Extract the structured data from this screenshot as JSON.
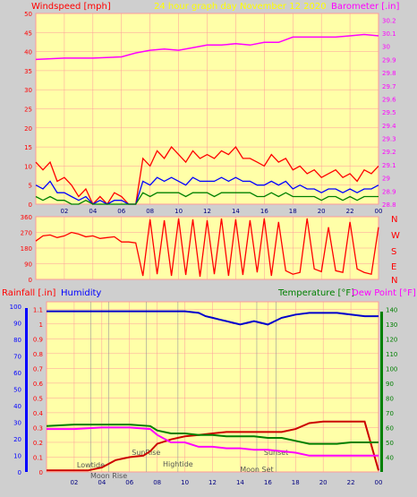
{
  "header": {
    "windspeed_label": "Windspeed [mph]",
    "title": "24 hour graph day   November 12 2020",
    "barometer_label": "Barometer [.in]"
  },
  "labels": {
    "rainfall": "Rainfall [.in]",
    "humidity": "Humidity",
    "temperature": "Temperature [°F]",
    "dewpoint": "Dew Point [°F]"
  },
  "colors": {
    "background": "#cfcfcf",
    "plot_bg": "#ffffa8",
    "gust": "#ff0000",
    "avg": "#0000ff",
    "lull": "#008000",
    "barometer": "#ff00ff",
    "direction": "#ff0000",
    "rain": "#cc0000",
    "humidity": "#0000cc",
    "temperature": "#008000",
    "dewpoint": "#ff00ff",
    "grid": "#ff9a9a"
  },
  "chart_data": [
    {
      "type": "line",
      "name": "wind-barometer",
      "x_ticks": [
        "02",
        "04",
        "06",
        "08",
        "10",
        "12",
        "14",
        "16",
        "18",
        "20",
        "22",
        "00"
      ],
      "xlim": [
        0,
        24
      ],
      "y_left_ticks": [
        "0",
        "5",
        "10",
        "15",
        "20",
        "25",
        "30",
        "35",
        "40",
        "45",
        "50"
      ],
      "ylim_left": [
        0,
        50
      ],
      "y_right_ticks": [
        "28.8",
        "28.9",
        "29",
        "29.1",
        "29.2",
        "29.3",
        "29.4",
        "29.5",
        "29.6",
        "29.7",
        "29.8",
        "29.9",
        "30",
        "30.1",
        "30.2"
      ],
      "ylim_right": [
        28.8,
        30.25
      ],
      "series": [
        {
          "name": "Windspeed gust",
          "axis": "left",
          "x": [
            0,
            0.5,
            1,
            1.5,
            2,
            2.5,
            3,
            3.5,
            4,
            4.5,
            5,
            5.5,
            6,
            6.5,
            7,
            7.5,
            8,
            8.5,
            9,
            9.5,
            10,
            10.5,
            11,
            11.5,
            12,
            12.5,
            13,
            13.5,
            14,
            14.5,
            15,
            15.5,
            16,
            16.5,
            17,
            17.5,
            18,
            18.5,
            19,
            19.5,
            20,
            20.5,
            21,
            21.5,
            22,
            22.5,
            23,
            23.5,
            24
          ],
          "values": [
            11,
            9,
            11,
            6,
            7,
            5,
            2,
            4,
            0,
            2,
            0,
            3,
            2,
            0,
            0,
            12,
            10,
            14,
            12,
            15,
            13,
            11,
            14,
            12,
            13,
            12,
            14,
            13,
            15,
            12,
            12,
            11,
            10,
            13,
            11,
            12,
            9,
            10,
            8,
            9,
            7,
            8,
            9,
            7,
            8,
            6,
            9,
            8,
            10
          ]
        },
        {
          "name": "Windspeed average",
          "axis": "left",
          "x": [
            0,
            0.5,
            1,
            1.5,
            2,
            2.5,
            3,
            3.5,
            4,
            4.5,
            5,
            5.5,
            6,
            6.5,
            7,
            7.5,
            8,
            8.5,
            9,
            9.5,
            10,
            10.5,
            11,
            11.5,
            12,
            12.5,
            13,
            13.5,
            14,
            14.5,
            15,
            15.5,
            16,
            16.5,
            17,
            17.5,
            18,
            18.5,
            19,
            19.5,
            20,
            20.5,
            21,
            21.5,
            22,
            22.5,
            23,
            23.5,
            24
          ],
          "values": [
            5,
            4,
            6,
            3,
            3,
            2,
            1,
            2,
            0,
            1,
            0,
            1,
            1,
            0,
            0,
            6,
            5,
            7,
            6,
            7,
            6,
            5,
            7,
            6,
            6,
            6,
            7,
            6,
            7,
            6,
            6,
            5,
            5,
            6,
            5,
            6,
            4,
            5,
            4,
            4,
            3,
            4,
            4,
            3,
            4,
            3,
            4,
            4,
            5
          ]
        },
        {
          "name": "Windspeed lull",
          "axis": "left",
          "x": [
            0,
            0.5,
            1,
            1.5,
            2,
            2.5,
            3,
            3.5,
            4,
            4.5,
            5,
            5.5,
            6,
            6.5,
            7,
            7.5,
            8,
            8.5,
            9,
            9.5,
            10,
            10.5,
            11,
            11.5,
            12,
            12.5,
            13,
            13.5,
            14,
            14.5,
            15,
            15.5,
            16,
            16.5,
            17,
            17.5,
            18,
            18.5,
            19,
            19.5,
            20,
            20.5,
            21,
            21.5,
            22,
            22.5,
            23,
            23.5,
            24
          ],
          "values": [
            2,
            1,
            2,
            1,
            1,
            0,
            0,
            1,
            0,
            0,
            0,
            0,
            0,
            0,
            0,
            3,
            2,
            3,
            3,
            3,
            3,
            2,
            3,
            3,
            3,
            2,
            3,
            3,
            3,
            3,
            3,
            2,
            2,
            3,
            2,
            3,
            2,
            2,
            2,
            2,
            1,
            2,
            2,
            1,
            2,
            1,
            2,
            2,
            2
          ]
        },
        {
          "name": "Barometer",
          "axis": "right",
          "x": [
            0,
            2,
            4,
            6,
            7,
            8,
            9,
            10,
            11,
            12,
            13,
            14,
            15,
            16,
            17,
            18,
            19,
            20,
            21,
            22,
            23,
            24
          ],
          "values": [
            29.9,
            29.91,
            29.91,
            29.92,
            29.95,
            29.97,
            29.98,
            29.97,
            29.99,
            30.01,
            30.01,
            30.02,
            30.01,
            30.03,
            30.03,
            30.07,
            30.07,
            30.07,
            30.07,
            30.08,
            30.09,
            30.08
          ]
        }
      ]
    },
    {
      "type": "line",
      "name": "wind-direction",
      "x_ticks": [
        "02",
        "04",
        "06",
        "08",
        "10",
        "12",
        "14",
        "16",
        "18",
        "20",
        "22",
        "00"
      ],
      "xlim": [
        0,
        24
      ],
      "y_left_ticks": [
        "0",
        "90",
        "180",
        "270",
        "360"
      ],
      "ylim_left": [
        0,
        360
      ],
      "y_right_ticks": [
        "N",
        "W",
        "S",
        "E",
        "N"
      ],
      "series": [
        {
          "name": "Wind direction",
          "axis": "left",
          "x": [
            0,
            0.5,
            1,
            1.5,
            2,
            2.5,
            3,
            3.5,
            4,
            4.5,
            5,
            5.5,
            6,
            6.5,
            7,
            7.5,
            8,
            8.5,
            9,
            9.5,
            10,
            10.5,
            11,
            11.5,
            12,
            12.5,
            13,
            13.5,
            14,
            14.5,
            15,
            15.5,
            16,
            16.5,
            17,
            17.5,
            18,
            18.5,
            19,
            19.5,
            20,
            20.5,
            21,
            21.5,
            22,
            22.5,
            23,
            23.5,
            24
          ],
          "values": [
            220,
            250,
            255,
            240,
            250,
            270,
            260,
            245,
            250,
            235,
            240,
            245,
            215,
            215,
            210,
            20,
            345,
            30,
            340,
            20,
            350,
            25,
            345,
            15,
            340,
            30,
            350,
            20,
            345,
            25,
            340,
            40,
            350,
            20,
            330,
            50,
            30,
            40,
            350,
            60,
            45,
            300,
            50,
            40,
            330,
            60,
            40,
            30,
            300
          ]
        }
      ]
    },
    {
      "type": "line",
      "name": "rain-humidity-temperature",
      "x_ticks": [
        "02",
        "04",
        "06",
        "08",
        "10",
        "12",
        "14",
        "16",
        "18",
        "20",
        "22",
        "00"
      ],
      "xlim": [
        0,
        24
      ],
      "y_left_ticks": [
        "0",
        "0.1",
        "0.2",
        "0.3",
        "0.4",
        "0.5",
        "0.6",
        "0.7",
        "0.8",
        "0.9",
        "1",
        "1.1"
      ],
      "ylim_left": [
        0,
        1.15
      ],
      "y_humidity_ticks": [
        "0",
        "10",
        "20",
        "30",
        "40",
        "50",
        "60",
        "70",
        "80",
        "90",
        "100"
      ],
      "y_right_ticks": [
        "40",
        "50",
        "60",
        "70",
        "80",
        "90",
        "100",
        "110",
        "120",
        "130",
        "140"
      ],
      "ylim_right": [
        30,
        145
      ],
      "series": [
        {
          "name": "Rainfall",
          "axis": "left",
          "x": [
            0,
            3,
            4,
            5,
            6,
            7,
            7.5,
            8,
            9,
            10,
            11,
            12,
            13,
            14,
            15,
            16,
            17,
            18,
            19,
            20,
            21,
            22,
            23,
            24
          ],
          "values": [
            0.01,
            0.01,
            0.03,
            0.08,
            0.1,
            0.11,
            0.14,
            0.19,
            0.22,
            0.24,
            0.25,
            0.26,
            0.27,
            0.27,
            0.27,
            0.27,
            0.27,
            0.29,
            0.33,
            0.34,
            0.34,
            0.34,
            0.34,
            0.01
          ]
        },
        {
          "name": "Humidity",
          "axis": "humidity",
          "x": [
            0,
            2,
            4,
            6,
            8,
            10,
            11,
            11.5,
            12,
            12.5,
            13,
            13.5,
            14,
            14.5,
            15,
            15.5,
            16,
            16.5,
            17,
            18,
            19,
            20,
            21,
            22,
            23,
            24
          ],
          "values": [
            97,
            97,
            97,
            97,
            97,
            97,
            96,
            94,
            93,
            92,
            91,
            90,
            89,
            90,
            91,
            90,
            89,
            91,
            93,
            95,
            96,
            96,
            96,
            95,
            94,
            94
          ]
        },
        {
          "name": "Temperature",
          "axis": "right",
          "x": [
            0,
            2,
            4,
            6,
            7.5,
            8,
            9,
            10,
            11,
            12,
            13,
            14,
            15,
            16,
            17,
            18,
            19,
            20,
            21,
            22,
            23,
            24
          ],
          "values": [
            61,
            62,
            62,
            62,
            61,
            58,
            56,
            56,
            55,
            55,
            54,
            54,
            54,
            53,
            53,
            51,
            49,
            49,
            49,
            50,
            50,
            50
          ]
        },
        {
          "name": "Dew Point",
          "axis": "right",
          "x": [
            0,
            2,
            4,
            6,
            7.5,
            8,
            9,
            10,
            11,
            12,
            13,
            14,
            15,
            16,
            17,
            18,
            19,
            20,
            21,
            22,
            23,
            24
          ],
          "values": [
            59,
            59,
            60,
            60,
            59,
            55,
            50,
            50,
            47,
            47,
            46,
            46,
            45,
            45,
            44,
            43,
            41,
            41,
            41,
            41,
            41,
            41
          ]
        }
      ],
      "annotations": [
        {
          "text": "Lowtide",
          "x": 3.2
        },
        {
          "text": "Moon Rise",
          "x": 4.5
        },
        {
          "text": "SunRise",
          "x": 7.2
        },
        {
          "text": "Hightide",
          "x": 9.5
        },
        {
          "text": "Moon Set",
          "x": 15.2
        },
        {
          "text": "Sunset",
          "x": 16.6
        }
      ]
    }
  ]
}
